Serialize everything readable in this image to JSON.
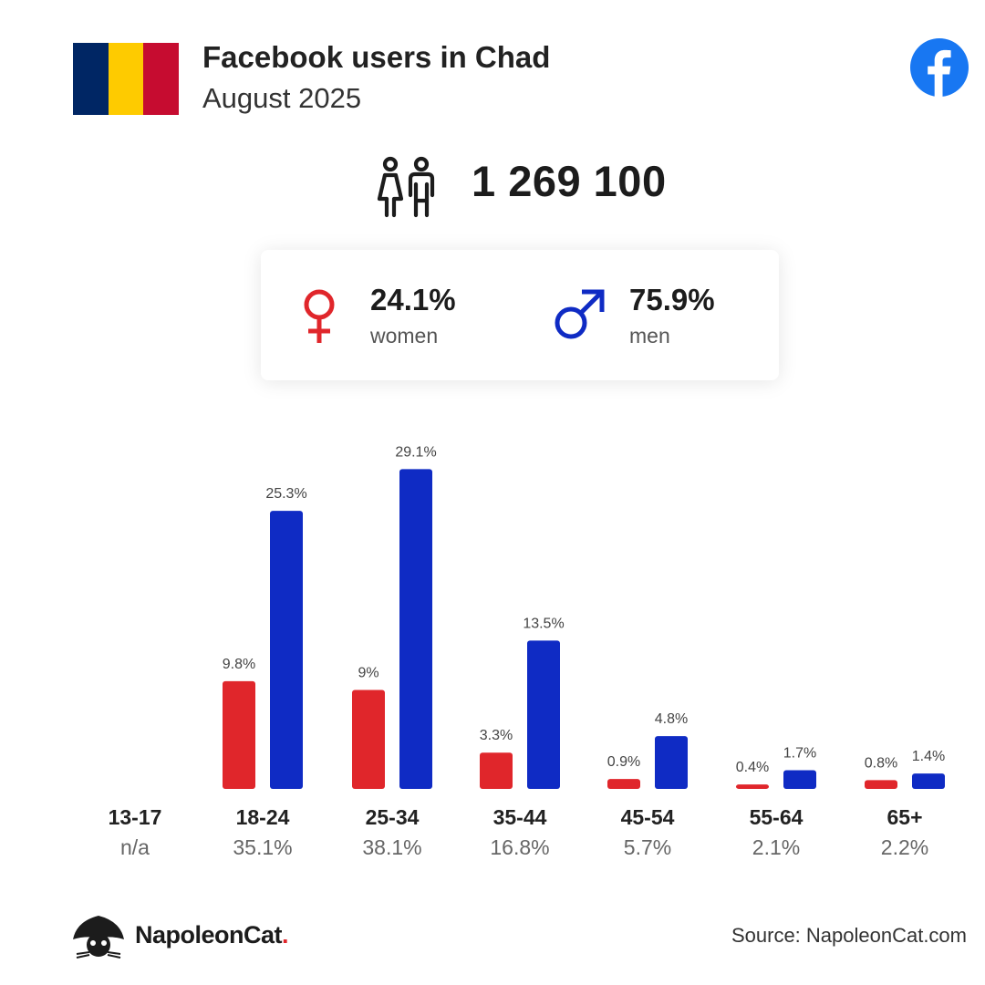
{
  "header": {
    "title": "Facebook users in Chad",
    "subtitle": "August 2025",
    "flag_colors": [
      "#002664",
      "#FECB00",
      "#C60C30"
    ],
    "icon": "facebook-icon"
  },
  "total": {
    "icon": "people-icon",
    "value": "1 269 100"
  },
  "gender": {
    "women": {
      "pct": "24.1%",
      "label": "women",
      "icon": "female-symbol-icon",
      "color": "#e0262b"
    },
    "men": {
      "pct": "75.9%",
      "label": "men",
      "icon": "male-symbol-icon",
      "color": "#0f2bc4"
    }
  },
  "colors": {
    "women": "#e0262b",
    "men": "#0f2bc4"
  },
  "chart_data": {
    "type": "bar",
    "categories": [
      "13-17",
      "18-24",
      "25-34",
      "35-44",
      "45-54",
      "55-64",
      "65+"
    ],
    "category_totals": [
      "n/a",
      "35.1%",
      "38.1%",
      "16.8%",
      "5.7%",
      "2.1%",
      "2.2%"
    ],
    "series": [
      {
        "name": "women",
        "values": [
          null,
          9.8,
          9,
          3.3,
          0.9,
          0.4,
          0.8
        ],
        "labels": [
          "",
          "9.8%",
          "9%",
          "3.3%",
          "0.9%",
          "0.4%",
          "0.8%"
        ],
        "color": "#e0262b"
      },
      {
        "name": "men",
        "values": [
          null,
          25.3,
          29.1,
          13.5,
          4.8,
          1.7,
          1.4
        ],
        "labels": [
          "",
          "25.3%",
          "29.1%",
          "13.5%",
          "4.8%",
          "1.7%",
          "1.4%"
        ],
        "color": "#0f2bc4"
      }
    ],
    "unit": "%"
  },
  "footer": {
    "brand": "NapoleonCat",
    "brand_dot": ".",
    "source": "Source: NapoleonCat.com"
  }
}
